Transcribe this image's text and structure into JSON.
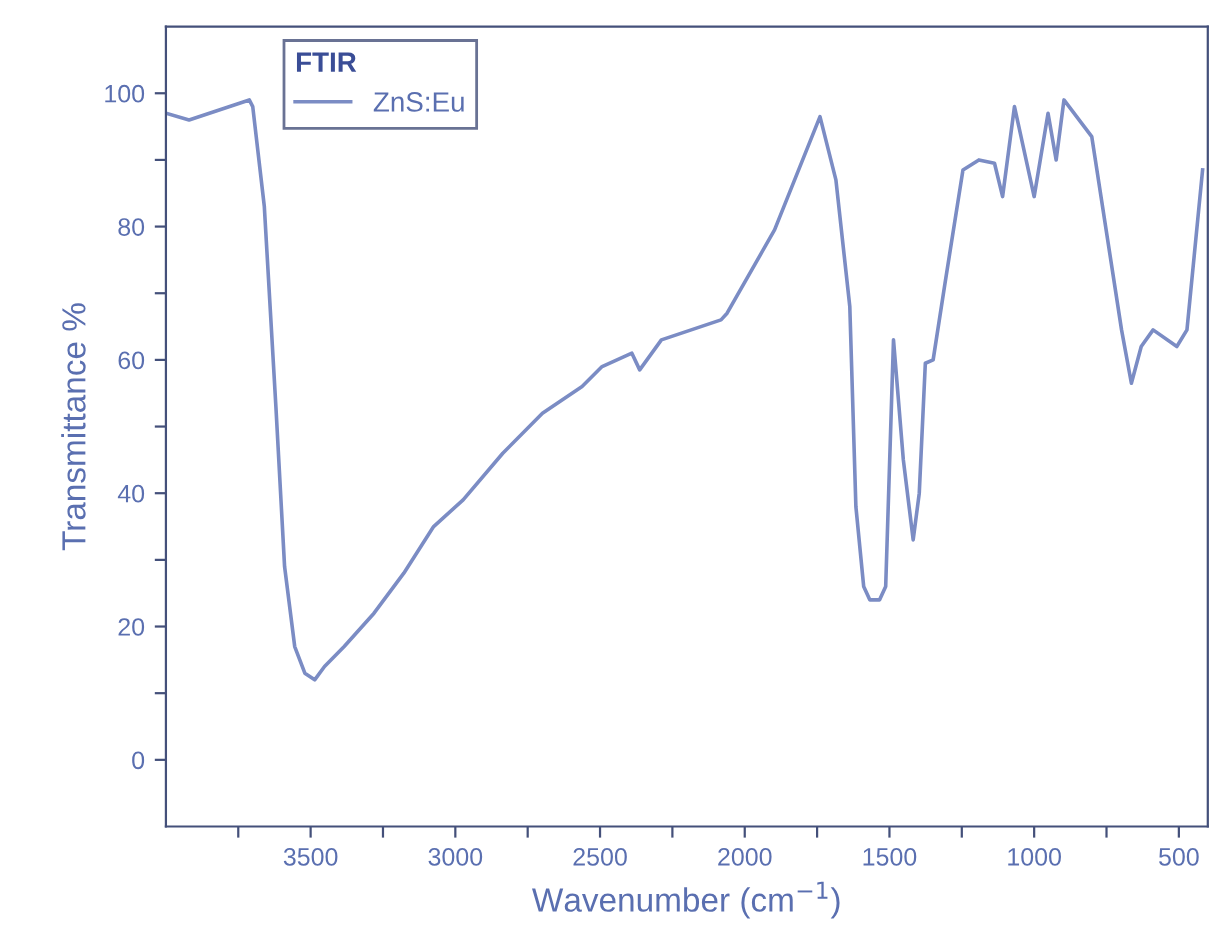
{
  "chart_data": {
    "type": "line",
    "xlabel": "Wavenumber (cm$^{−1}$)",
    "ylabel": "Transmittance %",
    "legend_title": "FTIR",
    "x": [
      4000,
      3920,
      3712,
      3700,
      3660,
      3620,
      3590,
      3555,
      3520,
      3486,
      3452,
      3384,
      3281,
      3178,
      3075,
      2973,
      2836,
      2699,
      2562,
      2493,
      2390,
      2363,
      2288,
      2082,
      2061,
      1897,
      1740,
      1685,
      1637,
      1616,
      1589,
      1568,
      1534,
      1513,
      1486,
      1452,
      1418,
      1397,
      1376,
      1349,
      1308,
      1246,
      1191,
      1137,
      1109,
      1068,
      1000,
      952,
      924,
      897,
      801,
      698,
      664,
      630,
      589,
      507,
      472,
      418
    ],
    "series": [
      {
        "name": "ZnS:Eu",
        "color": "#7b8cc4",
        "values": [
          97,
          96,
          99,
          98,
          83,
          53,
          29,
          17,
          13,
          12,
          14,
          17,
          22,
          28,
          35,
          39,
          46,
          52,
          56,
          59,
          61,
          58.5,
          63,
          66,
          67,
          79.5,
          96.5,
          87,
          68,
          38,
          26,
          24,
          24,
          26,
          63,
          45,
          33,
          40,
          59.5,
          60,
          71.5,
          88.5,
          90,
          89.5,
          84.5,
          98,
          84.5,
          97,
          90,
          99,
          93.5,
          64.5,
          56.5,
          62,
          64.5,
          62,
          64.5,
          88.5
        ]
      }
    ],
    "xlim": [
      4000,
      400
    ],
    "ylim": [
      -10,
      110
    ],
    "xticks": [
      {
        "value": 3750,
        "label": null
      },
      3500,
      {
        "value": 3250,
        "label": null
      },
      3000,
      {
        "value": 2750,
        "label": null
      },
      2500,
      {
        "value": 2250,
        "label": null
      },
      2000,
      {
        "value": 1750,
        "label": null
      },
      1500,
      {
        "value": 1250,
        "label": null
      },
      1000,
      {
        "value": 750,
        "label": null
      },
      500
    ],
    "yticks": [
      0,
      {
        "value": 10,
        "label": null
      },
      20,
      {
        "value": 30,
        "label": null
      },
      40,
      {
        "value": 50,
        "label": null
      },
      60,
      {
        "value": 70,
        "label": null
      },
      80,
      {
        "value": 90,
        "label": null
      },
      100
    ],
    "legend": "top left",
    "grid": false,
    "marker": "none",
    "line_style": "solid"
  }
}
